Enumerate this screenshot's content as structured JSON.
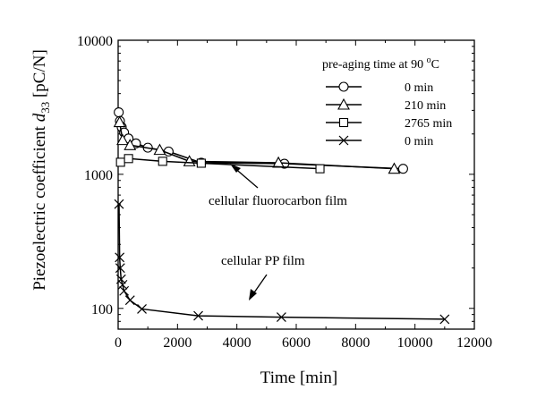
{
  "chart_data": {
    "type": "scatter",
    "title": "",
    "xlabel": "Time [min]",
    "ylabel": {
      "prefix": "Piezoelectric coefficient ",
      "symbol": "d",
      "subscript": "33",
      "unit": " [pC/N]"
    },
    "xlim": [
      0,
      12000
    ],
    "ylim": [
      70,
      10000
    ],
    "yscale": "log",
    "x_ticks": [
      0,
      2000,
      4000,
      6000,
      8000,
      10000,
      12000
    ],
    "x_tick_labels": [
      "0",
      "2000",
      "4000",
      "6000",
      "8000",
      "10000",
      "12000"
    ],
    "y_ticks": [
      100,
      1000,
      10000
    ],
    "y_tick_labels": [
      "100",
      "1000",
      "10000"
    ],
    "legend": {
      "title_main": "pre-aging time at 90 ",
      "title_sup": "o",
      "title_end": "C",
      "placement": "top-right"
    },
    "series": [
      {
        "name": "0 min",
        "marker": "circle",
        "x": [
          20,
          60,
          120,
          200,
          350,
          600,
          1000,
          1700,
          2800,
          5600,
          9600
        ],
        "y": [
          2900,
          2500,
          2250,
          2050,
          1850,
          1700,
          1580,
          1480,
          1220,
          1200,
          1100
        ]
      },
      {
        "name": "210 min",
        "marker": "triangle",
        "x": [
          50,
          150,
          400,
          1400,
          2400,
          5400,
          9300
        ],
        "y": [
          2450,
          1800,
          1650,
          1520,
          1250,
          1220,
          1100
        ]
      },
      {
        "name": "2765 min",
        "marker": "square",
        "x": [
          80,
          350,
          1500,
          2800,
          6800
        ],
        "y": [
          1230,
          1310,
          1250,
          1210,
          1100
        ]
      },
      {
        "name": "0 min",
        "marker": "x",
        "x": [
          30,
          50,
          70,
          100,
          150,
          200,
          400,
          800,
          2700,
          5500,
          11000
        ],
        "y": [
          600,
          240,
          200,
          165,
          150,
          135,
          115,
          99,
          88,
          86,
          83
        ]
      }
    ],
    "annotations": [
      {
        "text": "cellular fluorocarbon film"
      },
      {
        "text": "cellular PP film"
      }
    ]
  }
}
